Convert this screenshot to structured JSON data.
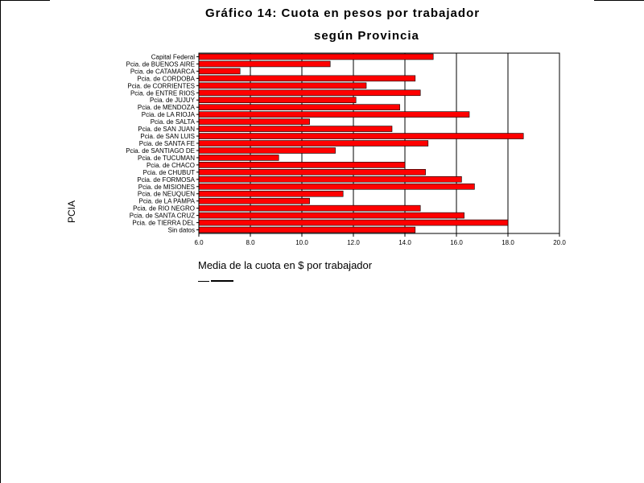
{
  "chart_data": {
    "type": "bar",
    "orientation": "horizontal",
    "title": "Gráfico 14: Cuota en pesos por trabajador",
    "subtitle": "según Provincia",
    "xlabel": "Media de la cuota en $ por trabajador",
    "ylabel": "PCIA",
    "bar_color": "#ff0000",
    "x_ticks": [
      "6.0",
      "8.0",
      "10.0",
      "12.0",
      "14.0",
      "16.0",
      "18.0",
      "20.0"
    ],
    "xlim": [
      6.0,
      20.0
    ],
    "grid": true,
    "categories": [
      "Capital Federal",
      "Pcia. de BUENOS AIRE",
      "Pcia. de CATAMARCA",
      "Pcia. de CORDOBA",
      "Pcia. de CORRIENTES",
      "Pcia. de ENTRE RIOS",
      "Pcia. de JUJUY",
      "Pcia. de MENDOZA",
      "Pcia. de LA RIOJA",
      "Pcia. de SALTA",
      "Pcia. de SAN JUAN",
      "Pcia. de SAN LUIS",
      "Pcia. de SANTA FE",
      "Pcia. de SANTIAGO DE",
      "Pcia. de TUCUMAN",
      "Pcia. de CHACO",
      "Pcia. de CHUBUT",
      "Pcia. de FORMOSA",
      "Pcia. de MISIONES",
      "Pcia. de NEUQUEN",
      "Pcia. de LA PAMPA",
      "Pcia. de RIO NEGRO",
      "Pcia. de SANTA CRUZ",
      "Pcia. de TIERRA DEL",
      "Sin datos"
    ],
    "values": [
      15.1,
      11.1,
      7.6,
      14.4,
      12.5,
      14.6,
      12.1,
      13.8,
      16.5,
      10.3,
      13.5,
      18.6,
      14.9,
      11.3,
      9.1,
      14.0,
      14.8,
      16.2,
      16.7,
      11.6,
      10.3,
      14.6,
      16.3,
      18.0,
      14.4
    ]
  }
}
